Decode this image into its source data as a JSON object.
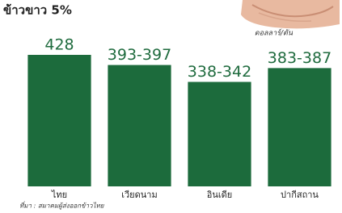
{
  "chart_data": {
    "type": "bar",
    "title": "ข้าวขาว 5%",
    "unit": "ดอลลาร์/ตัน",
    "categories": [
      "ไทย",
      "เวียดนาม",
      "อินเดีย",
      "ปากีสถาน"
    ],
    "values": [
      428,
      395,
      340,
      385
    ],
    "value_labels": [
      "428",
      "393-397",
      "338-342",
      "383-387"
    ],
    "color": "#1c6b3c",
    "source": "ที่มา : สมาคมผู้ส่งออกข้าวไทย"
  }
}
